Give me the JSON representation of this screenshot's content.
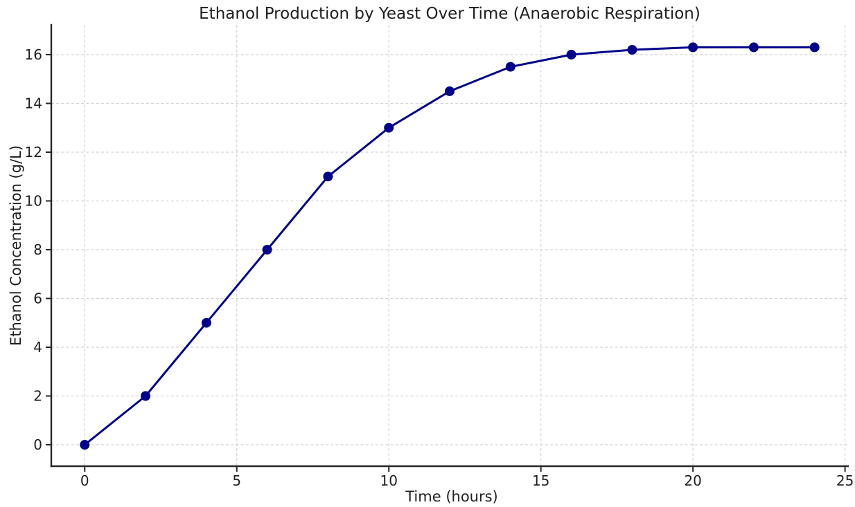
{
  "chart_data": {
    "type": "line",
    "title": "Ethanol Production by Yeast Over Time (Anaerobic Respiration)",
    "xlabel": "Time (hours)",
    "ylabel": "Ethanol Concentration (g/L)",
    "x": [
      0,
      2,
      4,
      6,
      8,
      10,
      12,
      14,
      16,
      18,
      20,
      22,
      24
    ],
    "y": [
      0,
      2,
      5,
      8,
      11,
      13,
      14.5,
      15.5,
      16,
      16.2,
      16.3,
      16.3,
      16.3
    ],
    "xticks": [
      0,
      5,
      10,
      15,
      20,
      25
    ],
    "yticks": [
      0,
      2,
      4,
      6,
      8,
      10,
      12,
      14,
      16
    ],
    "xlim": [
      -1.1,
      25.1
    ],
    "ylim": [
      -0.88,
      17.22
    ],
    "grid": true,
    "grid_style": "dashed",
    "legend": "none",
    "marker": "circle",
    "line_color": "#00008B",
    "marker_color": "#00008B",
    "grid_color": "#d2d2d2",
    "spine_color": "#262626",
    "text_color": "#1f1f1f",
    "background_color": "#ffffff"
  }
}
